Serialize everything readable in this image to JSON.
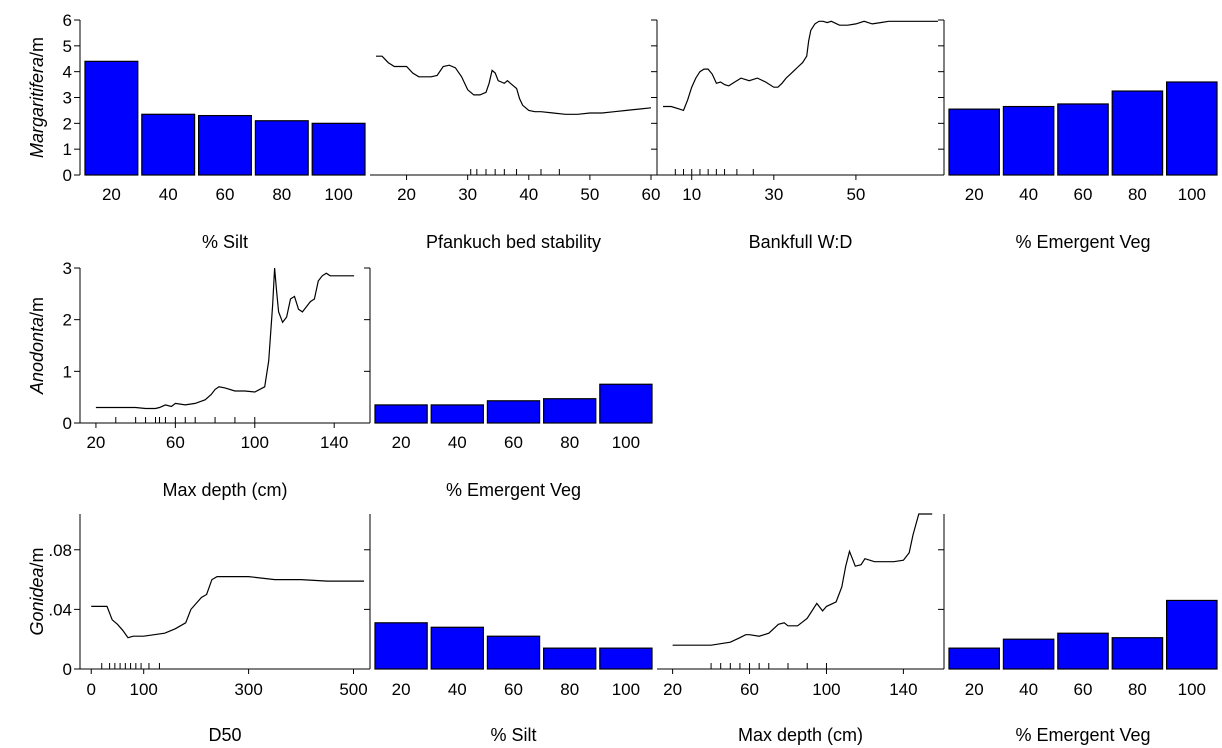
{
  "chart_data": [
    {
      "type": "line",
      "row": "margaritifera",
      "ylabel_italic": "Margaritifera",
      "ylabel_rest": "/m",
      "ylim": [
        0,
        6
      ],
      "yticks": [
        "0",
        "1",
        "2",
        "3",
        "4",
        "5",
        "6"
      ],
      "panels": [
        {
          "type": "bar",
          "xlabel": "% Silt",
          "categories": [
            "20",
            "40",
            "60",
            "80",
            "100"
          ],
          "values": [
            4.4,
            2.35,
            2.3,
            2.1,
            2.0
          ]
        },
        {
          "type": "line",
          "xlabel": "Pfankuch bed stability",
          "xlim": [
            15,
            60
          ],
          "xticks": [
            20,
            30,
            40,
            50,
            60
          ],
          "rug": [
            30.5,
            31.5,
            33,
            34.5,
            36,
            38,
            42,
            45
          ],
          "x": [
            15,
            16,
            17,
            18,
            19,
            20,
            21,
            22,
            23,
            24,
            25,
            26,
            27,
            28,
            29,
            30,
            31,
            32,
            33,
            33.5,
            34,
            34.5,
            35,
            35.5,
            36,
            36.5,
            37,
            37.5,
            38,
            38.5,
            39,
            40,
            41,
            42,
            44,
            46,
            48,
            50,
            52,
            54,
            56,
            58,
            60
          ],
          "y": [
            4.6,
            4.6,
            4.35,
            4.2,
            4.2,
            4.2,
            3.95,
            3.8,
            3.8,
            3.8,
            3.85,
            4.2,
            4.25,
            4.15,
            3.8,
            3.3,
            3.1,
            3.1,
            3.2,
            3.55,
            4.05,
            3.95,
            3.65,
            3.6,
            3.55,
            3.65,
            3.55,
            3.45,
            3.35,
            2.95,
            2.7,
            2.5,
            2.45,
            2.45,
            2.4,
            2.35,
            2.35,
            2.4,
            2.4,
            2.45,
            2.5,
            2.55,
            2.6
          ]
        },
        {
          "type": "line",
          "xlabel": "Bankfull W:D",
          "xlim": [
            3,
            70
          ],
          "xticks": [
            10,
            30,
            50
          ],
          "rug": [
            6,
            8,
            10,
            12,
            14,
            16,
            18,
            21,
            25
          ],
          "x": [
            3,
            5,
            7,
            8,
            9,
            10,
            11,
            12,
            13,
            14,
            15,
            16,
            17,
            18,
            19,
            20,
            22,
            24,
            26,
            28,
            30,
            31,
            32,
            33,
            34,
            35,
            36,
            37,
            38,
            38.5,
            39,
            40,
            41,
            42,
            43,
            44,
            46,
            48,
            50,
            52,
            54,
            56,
            58,
            60,
            62,
            64,
            66,
            68,
            70
          ],
          "y": [
            2.65,
            2.65,
            2.55,
            2.5,
            2.9,
            3.4,
            3.75,
            4.0,
            4.1,
            4.1,
            3.9,
            3.55,
            3.6,
            3.5,
            3.45,
            3.55,
            3.75,
            3.65,
            3.75,
            3.6,
            3.4,
            3.4,
            3.55,
            3.75,
            3.9,
            4.05,
            4.2,
            4.35,
            4.6,
            5.2,
            5.6,
            5.85,
            5.95,
            5.95,
            5.9,
            5.95,
            5.8,
            5.8,
            5.85,
            5.95,
            5.85,
            5.9,
            5.95,
            5.95,
            5.95,
            5.95,
            5.95,
            5.95,
            5.95
          ]
        },
        {
          "type": "bar",
          "xlabel": "% Emergent Veg",
          "categories": [
            "20",
            "40",
            "60",
            "80",
            "100"
          ],
          "values": [
            2.55,
            2.65,
            2.75,
            3.25,
            3.6
          ]
        }
      ]
    },
    {
      "type": "line",
      "row": "anodonta",
      "ylabel_italic": "Anodonta",
      "ylabel_rest": "/m",
      "ylim": [
        0,
        3
      ],
      "yticks": [
        "0",
        "1",
        "2",
        "3"
      ],
      "panels": [
        {
          "type": "line",
          "xlabel": "Max depth (cm)",
          "xlim": [
            15,
            155
          ],
          "xticks": [
            20,
            60,
            100,
            140
          ],
          "rug": [
            30,
            40,
            45,
            50,
            52,
            55,
            60,
            65,
            70,
            80,
            90,
            100
          ],
          "x": [
            20,
            25,
            30,
            35,
            40,
            45,
            50,
            52,
            55,
            58,
            60,
            65,
            70,
            75,
            78,
            80,
            82,
            85,
            90,
            95,
            100,
            105,
            107,
            109,
            110,
            111,
            112,
            114,
            116,
            118,
            120,
            122,
            124,
            126,
            128,
            130,
            132,
            134,
            136,
            138,
            140,
            145,
            150
          ],
          "y": [
            0.3,
            0.3,
            0.3,
            0.3,
            0.3,
            0.28,
            0.28,
            0.3,
            0.35,
            0.32,
            0.38,
            0.35,
            0.38,
            0.45,
            0.55,
            0.65,
            0.7,
            0.68,
            0.62,
            0.62,
            0.6,
            0.7,
            1.2,
            2.3,
            3.0,
            2.55,
            2.15,
            1.95,
            2.05,
            2.4,
            2.45,
            2.2,
            2.15,
            2.25,
            2.35,
            2.4,
            2.75,
            2.85,
            2.9,
            2.85,
            2.85,
            2.85,
            2.85
          ]
        },
        {
          "type": "bar",
          "xlabel": "% Emergent Veg",
          "categories": [
            "20",
            "40",
            "60",
            "80",
            "100"
          ],
          "values": [
            0.35,
            0.35,
            0.43,
            0.47,
            0.75
          ]
        }
      ]
    },
    {
      "type": "line",
      "row": "gonidea",
      "ylabel_italic": "Gonidea",
      "ylabel_rest": "/m",
      "ylim": [
        0,
        0.104
      ],
      "yticks": [
        "0",
        ".04",
        ".08"
      ],
      "panels": [
        {
          "type": "line",
          "xlabel": "D50",
          "xlim": [
            -10,
            520
          ],
          "xticks": [
            0,
            100,
            300,
            500
          ],
          "xticklabels": [
            "0",
            "100",
            "300",
            "500"
          ],
          "rug": [
            20,
            35,
            45,
            55,
            65,
            75,
            85,
            95,
            110,
            130
          ],
          "x": [
            0,
            20,
            30,
            40,
            50,
            60,
            70,
            80,
            100,
            120,
            140,
            160,
            180,
            190,
            200,
            210,
            220,
            230,
            240,
            250,
            260,
            280,
            300,
            350,
            400,
            450,
            500,
            520
          ],
          "y": [
            0.042,
            0.042,
            0.042,
            0.033,
            0.03,
            0.026,
            0.021,
            0.022,
            0.022,
            0.023,
            0.024,
            0.027,
            0.031,
            0.04,
            0.044,
            0.048,
            0.05,
            0.06,
            0.062,
            0.062,
            0.062,
            0.062,
            0.062,
            0.06,
            0.06,
            0.059,
            0.059,
            0.059
          ]
        },
        {
          "type": "bar",
          "xlabel": "% Silt",
          "categories": [
            "20",
            "40",
            "60",
            "80",
            "100"
          ],
          "values": [
            0.031,
            0.028,
            0.022,
            0.014,
            0.014
          ]
        },
        {
          "type": "line",
          "xlabel": "Max depth (cm)",
          "xlim": [
            15,
            158
          ],
          "xticks": [
            20,
            60,
            100,
            140
          ],
          "rug": [
            40,
            45,
            50,
            55,
            60,
            65,
            70,
            80,
            90,
            100
          ],
          "x": [
            20,
            30,
            40,
            45,
            50,
            55,
            58,
            60,
            65,
            70,
            75,
            78,
            80,
            85,
            90,
            95,
            98,
            100,
            105,
            108,
            110,
            112,
            115,
            118,
            120,
            125,
            130,
            135,
            140,
            143,
            145,
            148,
            150,
            153,
            155
          ],
          "y": [
            0.016,
            0.016,
            0.016,
            0.017,
            0.018,
            0.021,
            0.023,
            0.023,
            0.022,
            0.024,
            0.03,
            0.031,
            0.029,
            0.029,
            0.034,
            0.044,
            0.039,
            0.042,
            0.045,
            0.055,
            0.069,
            0.079,
            0.069,
            0.07,
            0.074,
            0.072,
            0.072,
            0.072,
            0.073,
            0.078,
            0.09,
            0.104,
            0.104,
            0.104,
            0.104
          ]
        },
        {
          "type": "bar",
          "xlabel": "% Emergent Veg",
          "categories": [
            "20",
            "40",
            "60",
            "80",
            "100"
          ],
          "values": [
            0.014,
            0.02,
            0.024,
            0.021,
            0.046
          ]
        }
      ]
    }
  ],
  "colors": {
    "bar_fill": "#0000ff",
    "line": "#000000"
  }
}
